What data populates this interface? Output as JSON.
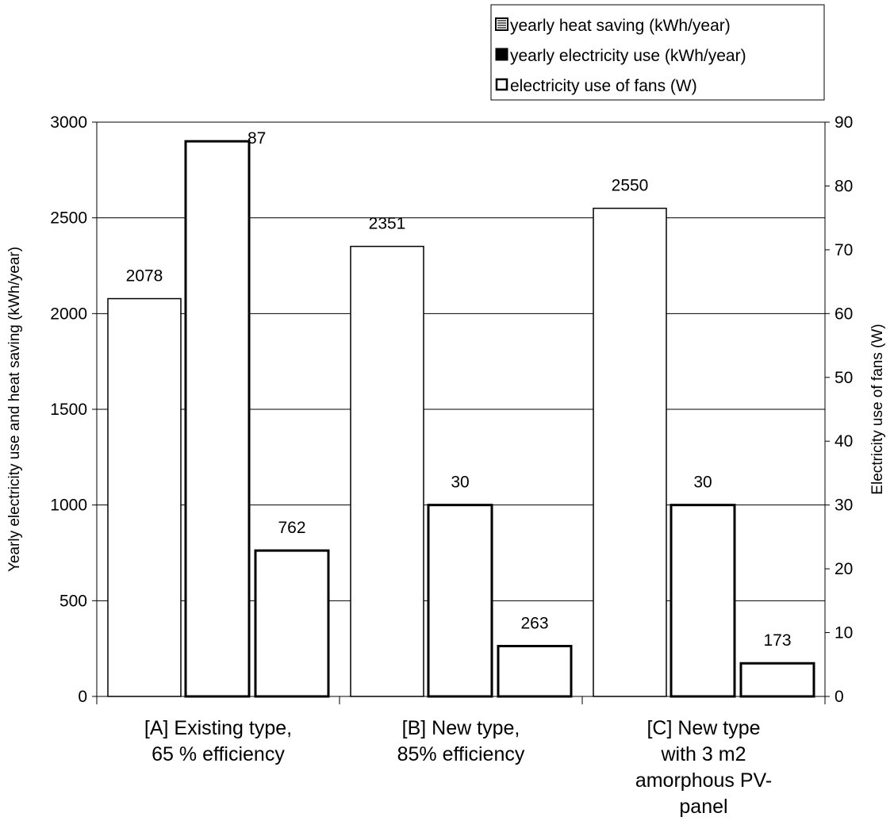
{
  "chart_data": {
    "type": "bar",
    "categories": [
      [
        "[A] Existing type,",
        "65 % efficiency"
      ],
      [
        "[B] New type,",
        "85% efficiency"
      ],
      [
        "[C] New type",
        "with 3 m2",
        "amorphous PV-",
        "panel"
      ]
    ],
    "series": [
      {
        "name": "yearly heat saving (kWh/year)",
        "axis": "left",
        "values": [
          2078,
          2351,
          2550
        ],
        "labels": [
          "2078",
          "2351",
          "2550"
        ]
      },
      {
        "name": "electricity use of fans (W)",
        "axis": "right",
        "values": [
          87,
          30,
          30
        ],
        "labels": [
          "87",
          "30",
          "30"
        ]
      },
      {
        "name": "yearly electricity use (kWh/year)",
        "axis": "left",
        "values": [
          762,
          263,
          173
        ],
        "labels": [
          "762",
          "263",
          "173"
        ]
      }
    ],
    "legend": {
      "position": "top-right",
      "entries": [
        {
          "label": "yearly heat saving (kWh/year)",
          "icon": "striped-square-icon"
        },
        {
          "label": "yearly electricity use (kWh/year)",
          "icon": "filled-square-icon"
        },
        {
          "label": "electricity use of fans (W)",
          "icon": "hollow-square-icon"
        }
      ]
    },
    "y_left": {
      "label": "Yearly electricity use and heat saving (kWh/year)",
      "lim": [
        0,
        3000
      ],
      "ticks": [
        0,
        500,
        1000,
        1500,
        2000,
        2500,
        3000
      ]
    },
    "y_right": {
      "label": "Electricity use of fans (W)",
      "lim": [
        0,
        90
      ],
      "ticks": [
        0,
        10,
        20,
        30,
        40,
        50,
        60,
        70,
        80,
        90
      ]
    },
    "grid": true
  }
}
